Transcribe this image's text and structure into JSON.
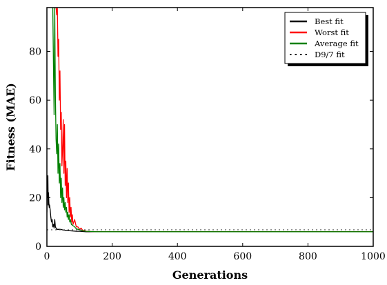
{
  "chart_data": {
    "type": "line",
    "xlabel": "Generations",
    "ylabel": "Fitness (MAE)",
    "xlim": [
      0,
      1000
    ],
    "ylim": [
      0,
      98
    ],
    "xticks": [
      0,
      200,
      400,
      600,
      800,
      1000
    ],
    "yticks": [
      0,
      20,
      40,
      60,
      80
    ],
    "grid": false,
    "legend_position": "top-right",
    "series": [
      {
        "name": "Best fit",
        "color": "#000000",
        "style": "solid",
        "x": [
          0,
          1,
          2,
          3,
          4,
          5,
          6,
          7,
          8,
          10,
          12,
          14,
          16,
          18,
          20,
          22,
          24,
          26,
          28,
          30,
          33,
          36,
          40,
          45,
          50,
          60,
          70,
          80,
          90,
          100,
          110,
          120,
          150,
          200,
          300,
          500,
          1000
        ],
        "y": [
          14,
          27,
          20,
          29,
          17,
          22,
          18,
          16,
          17,
          15,
          12,
          10,
          11,
          8,
          9,
          7.5,
          11,
          8,
          7.5,
          7,
          7,
          7,
          7,
          6.9,
          6.7,
          6.5,
          6.4,
          6.3,
          6.2,
          6.2,
          6.1,
          6.0,
          6.0,
          6.0,
          6.0,
          6.0,
          6.0
        ]
      },
      {
        "name": "Worst fit",
        "color": "#ff0000",
        "style": "solid",
        "x": [
          28,
          30,
          32,
          34,
          36,
          38,
          40,
          42,
          44,
          46,
          48,
          50,
          52,
          54,
          56,
          58,
          60,
          62,
          64,
          66,
          68,
          70,
          72,
          74,
          76,
          78,
          80,
          85,
          90,
          95,
          100,
          105,
          110,
          115,
          120,
          150,
          200,
          300,
          500,
          1000
        ],
        "y": [
          98,
          95,
          98,
          78,
          85,
          60,
          72,
          48,
          55,
          33,
          40,
          52,
          30,
          50,
          25,
          35,
          20,
          32,
          18,
          26,
          14,
          20,
          12,
          16,
          10,
          13,
          9,
          11,
          8,
          8,
          7,
          7.5,
          6.5,
          6.5,
          6.2,
          6.0,
          6.0,
          6.0,
          6.0,
          6.0
        ]
      },
      {
        "name": "Average fit",
        "color": "#008000",
        "style": "solid",
        "x": [
          18,
          20,
          22,
          24,
          26,
          28,
          30,
          32,
          34,
          36,
          38,
          40,
          42,
          44,
          46,
          48,
          50,
          52,
          54,
          56,
          58,
          60,
          62,
          64,
          66,
          68,
          70,
          72,
          75,
          80,
          85,
          90,
          95,
          100,
          105,
          110,
          120,
          150,
          200,
          300,
          500,
          1000
        ],
        "y": [
          98,
          75,
          54,
          98,
          62,
          44,
          38,
          50,
          30,
          42,
          26,
          34,
          20,
          28,
          18,
          24,
          16,
          20,
          15,
          18,
          14,
          16,
          12,
          14,
          11,
          13,
          10,
          11,
          9,
          8.5,
          8,
          7.2,
          7,
          6.8,
          6.6,
          6.4,
          6.2,
          6.0,
          6.0,
          6.0,
          6.0,
          6.0
        ]
      },
      {
        "name": "D9/7 fit",
        "color": "#555555",
        "style": "dotted",
        "x": [
          0,
          1000
        ],
        "y": [
          6.8,
          6.8
        ]
      }
    ]
  }
}
